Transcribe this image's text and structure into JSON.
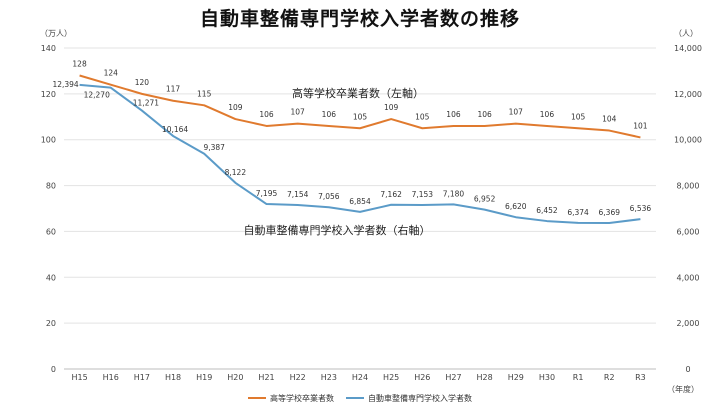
{
  "chart_data": {
    "type": "line",
    "title": "自動車整備専門学校入学者数の推移",
    "categories": [
      "H15",
      "H16",
      "H17",
      "H18",
      "H19",
      "H20",
      "H21",
      "H22",
      "H23",
      "H24",
      "H25",
      "H26",
      "H27",
      "H28",
      "H29",
      "H30",
      "R1",
      "R2",
      "R3"
    ],
    "xlabel": "（年度）",
    "y_left": {
      "label": "（万人）",
      "ylim": [
        0,
        140
      ],
      "ticks": [
        0,
        20,
        40,
        60,
        80,
        100,
        120,
        140
      ]
    },
    "y_right": {
      "label": "（人）",
      "ylim": [
        0,
        14000
      ],
      "ticks": [
        "0",
        "2,000",
        "4,000",
        "6,000",
        "8,000",
        "10,000",
        "12,000",
        "14,000"
      ]
    },
    "series": [
      {
        "name": "高等学校卒業者数",
        "axis": "left",
        "color": "#e07a2e",
        "annotation": "高等学校卒業者数（左軸）",
        "values": [
          128,
          124,
          120,
          117,
          115,
          109,
          106,
          107,
          106,
          105,
          109,
          105,
          106,
          106,
          107,
          106,
          105,
          104,
          101
        ],
        "labels": [
          "128",
          "124",
          "120",
          "117",
          "115",
          "109",
          "106",
          "107",
          "106",
          "105",
          "109",
          "105",
          "106",
          "106",
          "107",
          "106",
          "105",
          "104",
          "101"
        ]
      },
      {
        "name": "自動車整備専門学校入学者数",
        "axis": "right",
        "color": "#5b9bc8",
        "annotation": "自動車整備専門学校入学者数（右軸）",
        "values": [
          12394,
          12270,
          11271,
          10164,
          9387,
          8122,
          7195,
          7154,
          7056,
          6854,
          7162,
          7153,
          7180,
          6952,
          6620,
          6452,
          6374,
          6369,
          6536
        ],
        "labels": [
          "12,394",
          "12,270",
          "11,271",
          "10,164",
          "9,387",
          "8,122",
          "7,195",
          "7,154",
          "7,056",
          "6,854",
          "7,162",
          "7,153",
          "7,180",
          "6,952",
          "6,620",
          "6,452",
          "6,374",
          "6,369",
          "6,536"
        ]
      }
    ],
    "grid": true,
    "legend_position": "bottom"
  }
}
